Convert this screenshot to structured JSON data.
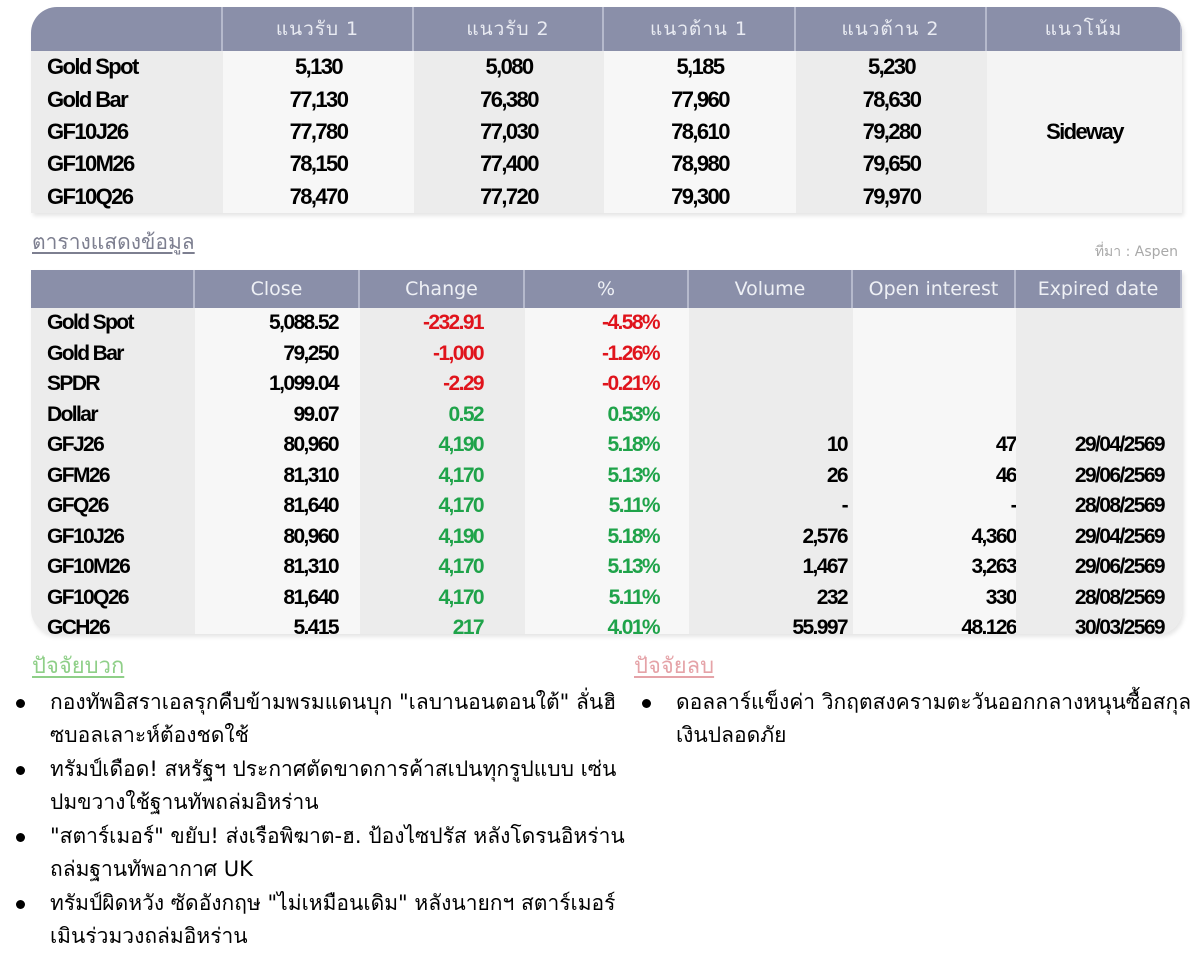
{
  "levels_table": {
    "headers": [
      "",
      "แนวรับ 1",
      "แนวรับ 2",
      "แนวต้าน 1",
      "แนวต้าน 2",
      "แนวโน้ม"
    ],
    "rows": [
      {
        "name": "Gold Spot",
        "s1": "5,130",
        "s2": "5,080",
        "r1": "5,185",
        "r2": "5,230"
      },
      {
        "name": "Gold Bar",
        "s1": "77,130",
        "s2": "76,380",
        "r1": "77,960",
        "r2": "78,630"
      },
      {
        "name": "GF10J26",
        "s1": "77,780",
        "s2": "77,030",
        "r1": "78,610",
        "r2": "79,280"
      },
      {
        "name": "GF10M26",
        "s1": "78,150",
        "s2": "77,400",
        "r1": "78,980",
        "r2": "79,650"
      },
      {
        "name": "GF10Q26",
        "s1": "78,470",
        "s2": "77,720",
        "r1": "79,300",
        "r2": "79,970"
      }
    ],
    "trend": "Sideway"
  },
  "section_title": "ตารางแสดงข้อมูล",
  "source": "ที่มา : Aspen",
  "market_table": {
    "headers": [
      "",
      "Close",
      "Change",
      "%",
      "Volume",
      "Open interest",
      "Expired date"
    ],
    "rows": [
      {
        "name": "Gold Spot",
        "close": "5,088.52",
        "change": "-232.91",
        "pct": "-4.58%",
        "volume": "",
        "oi": "",
        "expiry": "",
        "dir": "neg"
      },
      {
        "name": "Gold Bar",
        "close": "79,250",
        "change": "-1,000",
        "pct": "-1.26%",
        "volume": "",
        "oi": "",
        "expiry": "",
        "dir": "neg"
      },
      {
        "name": "SPDR",
        "close": "1,099.04",
        "change": "-2.29",
        "pct": "-0.21%",
        "volume": "",
        "oi": "",
        "expiry": "",
        "dir": "neg"
      },
      {
        "name": "Dollar",
        "close": "99.07",
        "change": "0.52",
        "pct": "0.53%",
        "volume": "",
        "oi": "",
        "expiry": "",
        "dir": "pos"
      },
      {
        "name": "GFJ26",
        "close": "80,960",
        "change": "4,190",
        "pct": "5.18%",
        "volume": "10",
        "oi": "47",
        "expiry": "29/04/2569",
        "dir": "pos"
      },
      {
        "name": "GFM26",
        "close": "81,310",
        "change": "4,170",
        "pct": "5.13%",
        "volume": "26",
        "oi": "46",
        "expiry": "29/06/2569",
        "dir": "pos"
      },
      {
        "name": "GFQ26",
        "close": "81,640",
        "change": "4,170",
        "pct": "5.11%",
        "volume": "-",
        "oi": "-",
        "expiry": "28/08/2569",
        "dir": "pos"
      },
      {
        "name": "GF10J26",
        "close": "80,960",
        "change": "4,190",
        "pct": "5.18%",
        "volume": "2,576",
        "oi": "4,360",
        "expiry": "29/04/2569",
        "dir": "pos"
      },
      {
        "name": "GF10M26",
        "close": "81,310",
        "change": "4,170",
        "pct": "5.13%",
        "volume": "1,467",
        "oi": "3,263",
        "expiry": "29/06/2569",
        "dir": "pos"
      },
      {
        "name": "GF10Q26",
        "close": "81,640",
        "change": "4,170",
        "pct": "5.11%",
        "volume": "232",
        "oi": "330",
        "expiry": "28/08/2569",
        "dir": "pos"
      },
      {
        "name": "GCH26",
        "close": "5,415",
        "change": "217",
        "pct": "4.01%",
        "volume": "55,997",
        "oi": "48,126",
        "expiry": "30/03/2569",
        "dir": "pos"
      }
    ]
  },
  "factors": {
    "positive": {
      "title": "ปัจจัยบวก",
      "items": [
        "กองทัพอิสราเอลรุกคืบข้ามพรมแดนบุก \"เลบานอนตอนใต้\" ลั่นฮิซบอลเลาะห์ต้องชดใช้",
        "ทรัมป์เดือด! สหรัฐฯ ประกาศตัดขาดการค้าสเปนทุกรูปแบบ เซ่นปมขวางใช้ฐานทัพถล่มอิหร่าน",
        "\"สตาร์เมอร์\" ขยับ! ส่งเรือพิฆาต-ฮ. ป้องไซปรัส หลังโดรนอิหร่านถล่มฐานทัพอากาศ UK",
        "ทรัมป์ผิดหวัง ซัดอังกฤษ \"ไม่เหมือนเดิม\" หลังนายกฯ สตาร์เมอร์เมินร่วมวงถล่มอิหร่าน"
      ]
    },
    "negative": {
      "title": "ปัจจัยลบ",
      "items": [
        "ดอลลาร์แข็งค่า วิกฤตสงครามตะวันออกกลางหนุนซื้อสกุลเงินปลอดภัย"
      ]
    }
  },
  "colors": {
    "header_bg": "#8a8fa9",
    "negative": "#e0141c",
    "positive": "#1fa34a",
    "positive_title": "#8fcf88",
    "negative_title": "#e5a3a8"
  }
}
